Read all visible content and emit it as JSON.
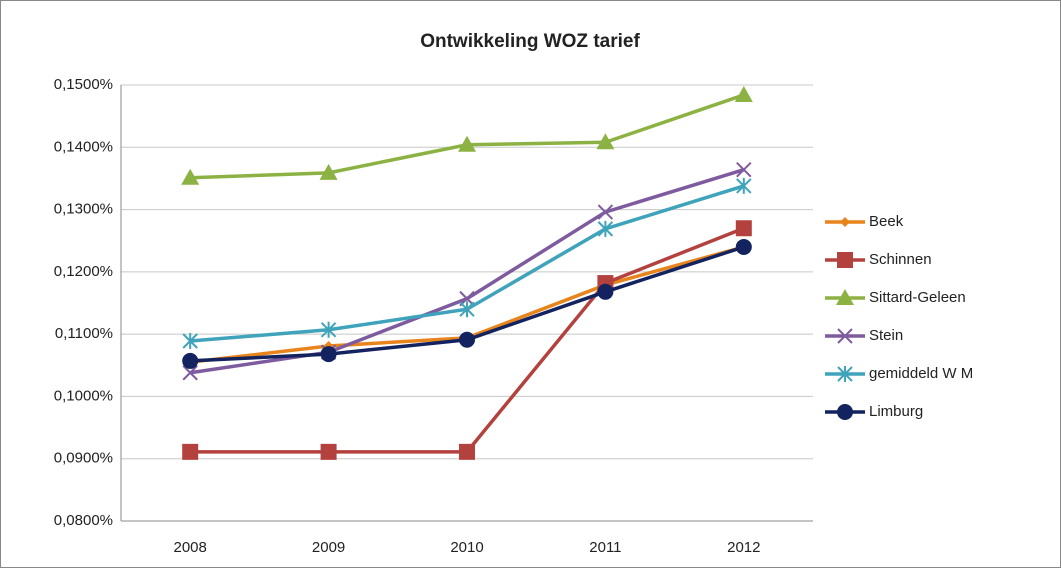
{
  "chart_data": {
    "type": "line",
    "title": "Ontwikkeling WOZ tarief",
    "categories": [
      "2008",
      "2009",
      "2010",
      "2011",
      "2012"
    ],
    "series": [
      {
        "name": "Beek",
        "color": "#e8841c",
        "marker": "diamond",
        "values": [
          0.1055,
          0.1081,
          0.1094,
          0.1179,
          0.124
        ]
      },
      {
        "name": "Schinnen",
        "color": "#b3423e",
        "marker": "square",
        "values": [
          0.0911,
          0.0911,
          0.0911,
          0.1182,
          0.127
        ]
      },
      {
        "name": "Sittard-Geleen",
        "color": "#8db244",
        "marker": "triangle",
        "values": [
          0.1351,
          0.1359,
          0.1404,
          0.1408,
          0.1484
        ]
      },
      {
        "name": "Stein",
        "color": "#7e5b9f",
        "marker": "x",
        "values": [
          0.1038,
          0.1071,
          0.1157,
          0.1296,
          0.1364
        ]
      },
      {
        "name": "gemiddeld W M",
        "color": "#3ea3bb",
        "marker": "star",
        "values": [
          0.1089,
          0.1107,
          0.114,
          0.1269,
          0.1338
        ]
      },
      {
        "name": "Limburg",
        "color": "#12235f",
        "marker": "circle",
        "values": [
          0.1057,
          0.1068,
          0.1091,
          0.1168,
          0.124
        ]
      }
    ],
    "ylim": [
      0.08,
      0.15
    ],
    "yticks": [
      {
        "value": 0.08,
        "label": "0,0800%"
      },
      {
        "value": 0.09,
        "label": "0,0900%"
      },
      {
        "value": 0.1,
        "label": "0,1000%"
      },
      {
        "value": 0.11,
        "label": "0,1100%"
      },
      {
        "value": 0.12,
        "label": "0,1200%"
      },
      {
        "value": 0.13,
        "label": "0,1300%"
      },
      {
        "value": 0.14,
        "label": "0,1400%"
      },
      {
        "value": 0.15,
        "label": "0,1500%"
      }
    ],
    "grid": true,
    "legend": "right"
  }
}
